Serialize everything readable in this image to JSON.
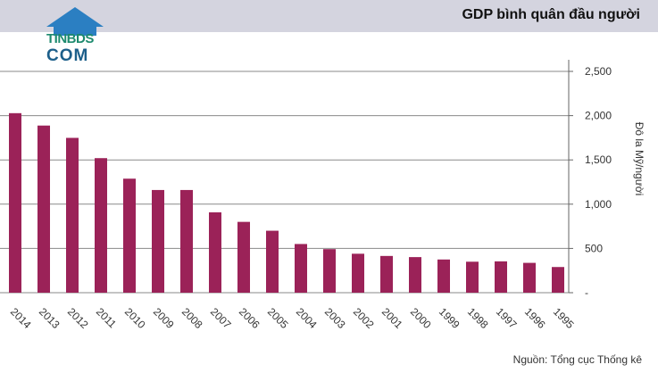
{
  "header": {
    "title": "GDP bình quân đầu người",
    "logo_line1": "TINBDS",
    "logo_line2": "COM",
    "band_color": "#d4d4df"
  },
  "source": "Nguồn: Tổng cục Thống kê",
  "chart_data": {
    "type": "bar",
    "title": "GDP bình quân đầu người",
    "ylabel": "Đô la Mỹ/người",
    "xlabel": "",
    "ylim": [
      0,
      2500
    ],
    "yticks": [
      0,
      500,
      1000,
      1500,
      2000,
      2500
    ],
    "ytick_labels": [
      "-",
      "500",
      "1,000",
      "1,500",
      "2,000",
      "2,500"
    ],
    "grid": true,
    "bar_color": "#9b2258",
    "categories": [
      "2014",
      "2013",
      "2012",
      "2011",
      "2010",
      "2009",
      "2008",
      "2007",
      "2006",
      "2005",
      "2004",
      "2003",
      "2002",
      "2001",
      "2000",
      "1999",
      "1998",
      "1997",
      "1996",
      "1995"
    ],
    "values": [
      2028,
      1888,
      1749,
      1520,
      1288,
      1160,
      1160,
      908,
      800,
      700,
      550,
      492,
      440,
      415,
      402,
      375,
      350,
      354,
      337,
      290
    ]
  }
}
